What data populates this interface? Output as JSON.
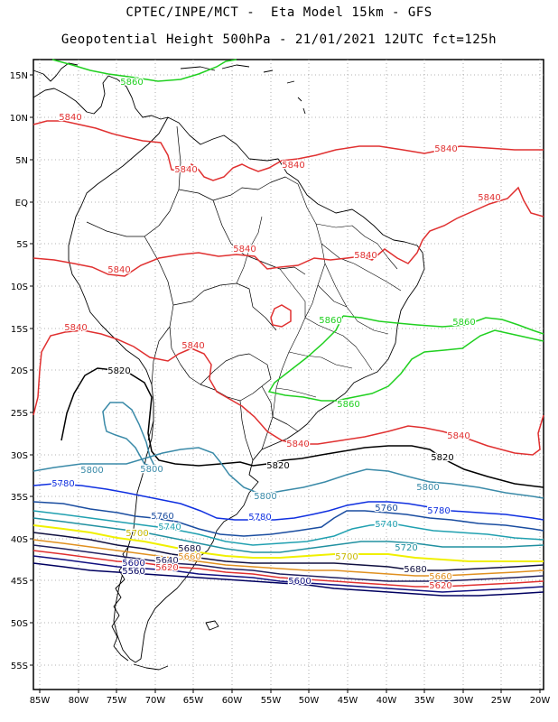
{
  "header": {
    "line1": "CPTEC/INPE/MCT -  Eta Model 15km - GFS",
    "line2": "Geopotential Height 500hPa - 21/01/2021 12UTC fct=125h"
  },
  "axes": {
    "lat_labels": [
      "15N",
      "10N",
      "5N",
      "EQ",
      "5S",
      "10S",
      "15S",
      "20S",
      "25S",
      "30S",
      "35S",
      "40S",
      "45S",
      "50S",
      "55S"
    ],
    "lon_labels": [
      "85W",
      "80W",
      "75W",
      "70W",
      "65W",
      "60W",
      "55W",
      "50W",
      "45W",
      "40W",
      "35W",
      "30W",
      "25W",
      "20W"
    ],
    "grid": true
  },
  "contour_colors": {
    "5560": "#000060",
    "5600": "#101080",
    "5620": "#e03030",
    "5640": "#202060",
    "5660": "#e09020",
    "5680": "#101040",
    "5700": "#f0f000",
    "5720": "#2090a0",
    "5740": "#20a0b0",
    "5760": "#1a4da0",
    "5780": "#1030e0",
    "5800": "#3a8aa8",
    "5820": "#000000",
    "5840": "#e03030",
    "5860": "#20d020"
  },
  "contour_labels": [
    {
      "text": "5860",
      "color": "#20d020"
    },
    {
      "text": "5840",
      "color": "#e03030"
    },
    {
      "text": "5840",
      "color": "#e03030"
    },
    {
      "text": "5840",
      "color": "#e03030"
    },
    {
      "text": "5840",
      "color": "#e03030"
    },
    {
      "text": "5840",
      "color": "#e03030"
    },
    {
      "text": "5840",
      "color": "#e03030"
    },
    {
      "text": "5840",
      "color": "#e03030"
    },
    {
      "text": "5840",
      "color": "#e03030"
    },
    {
      "text": "5840",
      "color": "#e03030"
    },
    {
      "text": "5840",
      "color": "#e03030"
    },
    {
      "text": "5840",
      "color": "#e03030"
    },
    {
      "text": "5840",
      "color": "#e03030"
    },
    {
      "text": "5860",
      "color": "#20d020"
    },
    {
      "text": "5860",
      "color": "#20d020"
    },
    {
      "text": "5860",
      "color": "#20d020"
    },
    {
      "text": "5820",
      "color": "#000000"
    },
    {
      "text": "5820",
      "color": "#000000"
    },
    {
      "text": "5820",
      "color": "#000000"
    },
    {
      "text": "5800",
      "color": "#3a8aa8"
    },
    {
      "text": "5800",
      "color": "#3a8aa8"
    },
    {
      "text": "5800",
      "color": "#3a8aa8"
    },
    {
      "text": "5800",
      "color": "#3a8aa8"
    },
    {
      "text": "5780",
      "color": "#1030e0"
    },
    {
      "text": "5780",
      "color": "#1030e0"
    },
    {
      "text": "5780",
      "color": "#1030e0"
    },
    {
      "text": "5760",
      "color": "#1a4da0"
    },
    {
      "text": "5760",
      "color": "#1a4da0"
    },
    {
      "text": "5740",
      "color": "#20a0b0"
    },
    {
      "text": "5740",
      "color": "#20a0b0"
    },
    {
      "text": "5720",
      "color": "#2090a0"
    },
    {
      "text": "5700",
      "color": "#c8b800"
    },
    {
      "text": "5700",
      "color": "#c8b800"
    },
    {
      "text": "5680",
      "color": "#101040"
    },
    {
      "text": "5680",
      "color": "#101040"
    },
    {
      "text": "5660",
      "color": "#e09020"
    },
    {
      "text": "5660",
      "color": "#e09020"
    },
    {
      "text": "5640",
      "color": "#202060"
    },
    {
      "text": "5620",
      "color": "#e03030"
    },
    {
      "text": "5620",
      "color": "#e03030"
    },
    {
      "text": "5600",
      "color": "#101080"
    },
    {
      "text": "5600",
      "color": "#101080"
    },
    {
      "text": "5560",
      "color": "#000060"
    }
  ]
}
